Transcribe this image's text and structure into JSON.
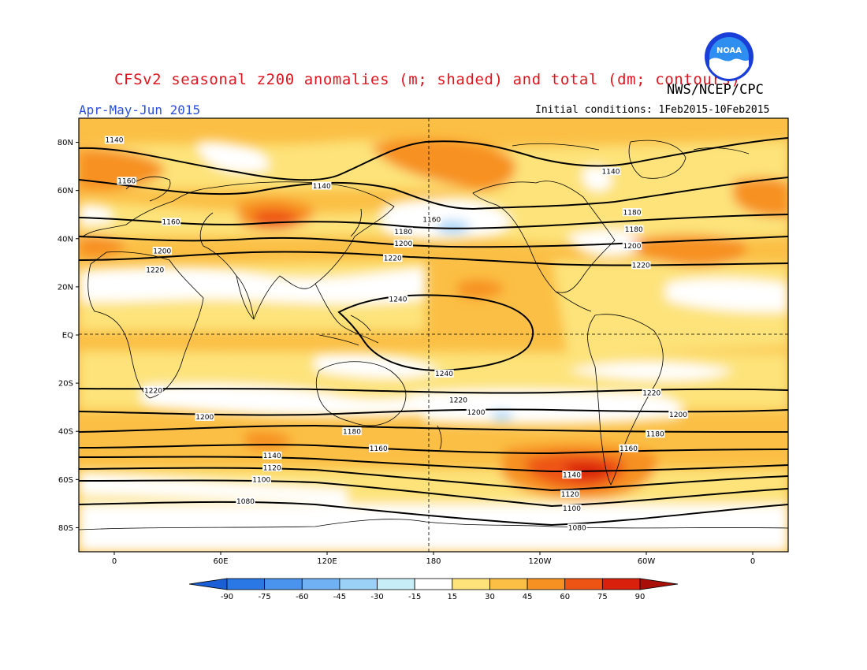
{
  "title": "CFSv2 seasonal z200 anomalies (m; shaded) and total (dm; contours)",
  "credit": "NWS/NCEP/CPC",
  "logo_text": "NOAA",
  "period": "Apr-May-Jun 2015",
  "initial_conditions": "Initial conditions: 1Feb2015-10Feb2015",
  "lat_labels": [
    "80N",
    "60N",
    "40N",
    "20N",
    "EQ",
    "20S",
    "40S",
    "60S",
    "80S"
  ],
  "lon_labels": [
    "0",
    "60E",
    "120E",
    "180",
    "120W",
    "60W",
    "0"
  ],
  "colorbar": {
    "ticks": [
      "-90",
      "-75",
      "-60",
      "-45",
      "-30",
      "-15",
      "15",
      "30",
      "45",
      "60",
      "75",
      "90"
    ],
    "colors": [
      "#1a5fd6",
      "#2a78e6",
      "#4a94ee",
      "#6fb1f2",
      "#9bd0f7",
      "#c7eef7",
      "#ffffff",
      "#fde37a",
      "#fbbf45",
      "#f79122",
      "#ee5514",
      "#d9200c",
      "#a90f08"
    ]
  },
  "contour_levels": [
    "1080",
    "1100",
    "1120",
    "1140",
    "1160",
    "1180",
    "1200",
    "1220",
    "1240"
  ],
  "contour_labels": [
    {
      "text": "1140",
      "lon": 0,
      "lat": 81
    },
    {
      "text": "1140",
      "lon": 117,
      "lat": 62
    },
    {
      "text": "1160",
      "lon": 7,
      "lat": 64
    },
    {
      "text": "1160",
      "lon": 32,
      "lat": 47
    },
    {
      "text": "1200",
      "lon": 27,
      "lat": 35
    },
    {
      "text": "1220",
      "lon": 23,
      "lat": 27
    },
    {
      "text": "1160",
      "lon": 179,
      "lat": 48
    },
    {
      "text": "1180",
      "lon": 163,
      "lat": 43
    },
    {
      "text": "1200",
      "lon": 163,
      "lat": 38
    },
    {
      "text": "1220",
      "lon": 157,
      "lat": 32
    },
    {
      "text": "1240",
      "lon": 160,
      "lat": 15
    },
    {
      "text": "1240",
      "lon": -174,
      "lat": -16
    },
    {
      "text": "1140",
      "lon": -80,
      "lat": 68
    },
    {
      "text": "1180",
      "lon": -68,
      "lat": 51
    },
    {
      "text": "1180",
      "lon": -67,
      "lat": 44
    },
    {
      "text": "1200",
      "lon": -68,
      "lat": 37
    },
    {
      "text": "1220",
      "lon": -63,
      "lat": 29
    },
    {
      "text": "1220",
      "lon": 22,
      "lat": -23
    },
    {
      "text": "1200",
      "lon": 51,
      "lat": -34
    },
    {
      "text": "1220",
      "lon": -166,
      "lat": -27
    },
    {
      "text": "1200",
      "lon": -156,
      "lat": -32
    },
    {
      "text": "1220",
      "lon": -57,
      "lat": -24
    },
    {
      "text": "1200",
      "lon": -42,
      "lat": -33
    },
    {
      "text": "1180",
      "lon": 134,
      "lat": -40
    },
    {
      "text": "1180",
      "lon": -55,
      "lat": -41
    },
    {
      "text": "1160",
      "lon": 149,
      "lat": -47
    },
    {
      "text": "1160",
      "lon": -70,
      "lat": -47
    },
    {
      "text": "1140",
      "lon": 89,
      "lat": -50
    },
    {
      "text": "1120",
      "lon": 89,
      "lat": -55
    },
    {
      "text": "1100",
      "lon": 83,
      "lat": -60
    },
    {
      "text": "1080",
      "lon": 74,
      "lat": -69
    },
    {
      "text": "1140",
      "lon": -102,
      "lat": -58
    },
    {
      "text": "1120",
      "lon": -103,
      "lat": -66
    },
    {
      "text": "1100",
      "lon": -102,
      "lat": -72
    },
    {
      "text": "1080",
      "lon": -99,
      "lat": -80
    }
  ]
}
